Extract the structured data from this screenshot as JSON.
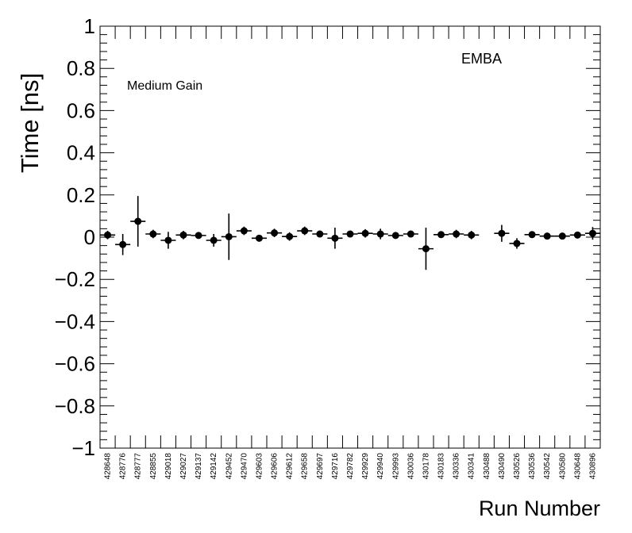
{
  "chart_data": {
    "type": "scatter",
    "title": "",
    "xlabel": "Run Number",
    "ylabel": "Time [ns]",
    "ylim": [
      -1,
      1
    ],
    "y_ticks": [
      "−1",
      "−0.8",
      "−0.6",
      "−0.4",
      "−0.2",
      "0",
      "0.2",
      "0.4",
      "0.6",
      "0.8",
      "1"
    ],
    "y_tick_values": [
      -1,
      -0.8,
      -0.6,
      -0.4,
      -0.2,
      0,
      0.2,
      0.4,
      0.6,
      0.8,
      1
    ],
    "grid": false,
    "annotations": [
      "EMBA",
      "Medium Gain"
    ],
    "series_color": "#000000",
    "categories": [
      "428648",
      "428776",
      "428777",
      "428855",
      "429018",
      "429027",
      "429137",
      "429142",
      "429452",
      "429470",
      "429603",
      "429606",
      "429612",
      "429658",
      "429697",
      "429716",
      "429782",
      "429929",
      "429940",
      "429993",
      "430036",
      "430178",
      "430183",
      "430336",
      "430341",
      "430488",
      "430490",
      "430526",
      "430536",
      "430542",
      "430580",
      "430648",
      "430896"
    ],
    "values": [
      0.01,
      -0.035,
      0.075,
      0.015,
      -0.015,
      0.01,
      0.008,
      -0.015,
      0.002,
      0.03,
      -0.005,
      0.02,
      0.003,
      0.03,
      0.015,
      -0.005,
      0.015,
      0.018,
      0.015,
      0.008,
      0.015,
      -0.055,
      0.012,
      0.015,
      0.01,
      null,
      0.018,
      -0.03,
      0.012,
      0.005,
      0.005,
      0.01,
      0.018
    ],
    "errors": [
      0.02,
      0.05,
      0.12,
      0.02,
      0.04,
      0.02,
      0.015,
      0.03,
      0.11,
      0.02,
      0.015,
      0.02,
      0.02,
      0.02,
      0.015,
      0.05,
      0.015,
      0.02,
      0.025,
      0.015,
      0.015,
      0.1,
      0.015,
      0.02,
      0.02,
      null,
      0.04,
      0.025,
      0.015,
      0.015,
      0.015,
      0.015,
      0.03
    ]
  }
}
